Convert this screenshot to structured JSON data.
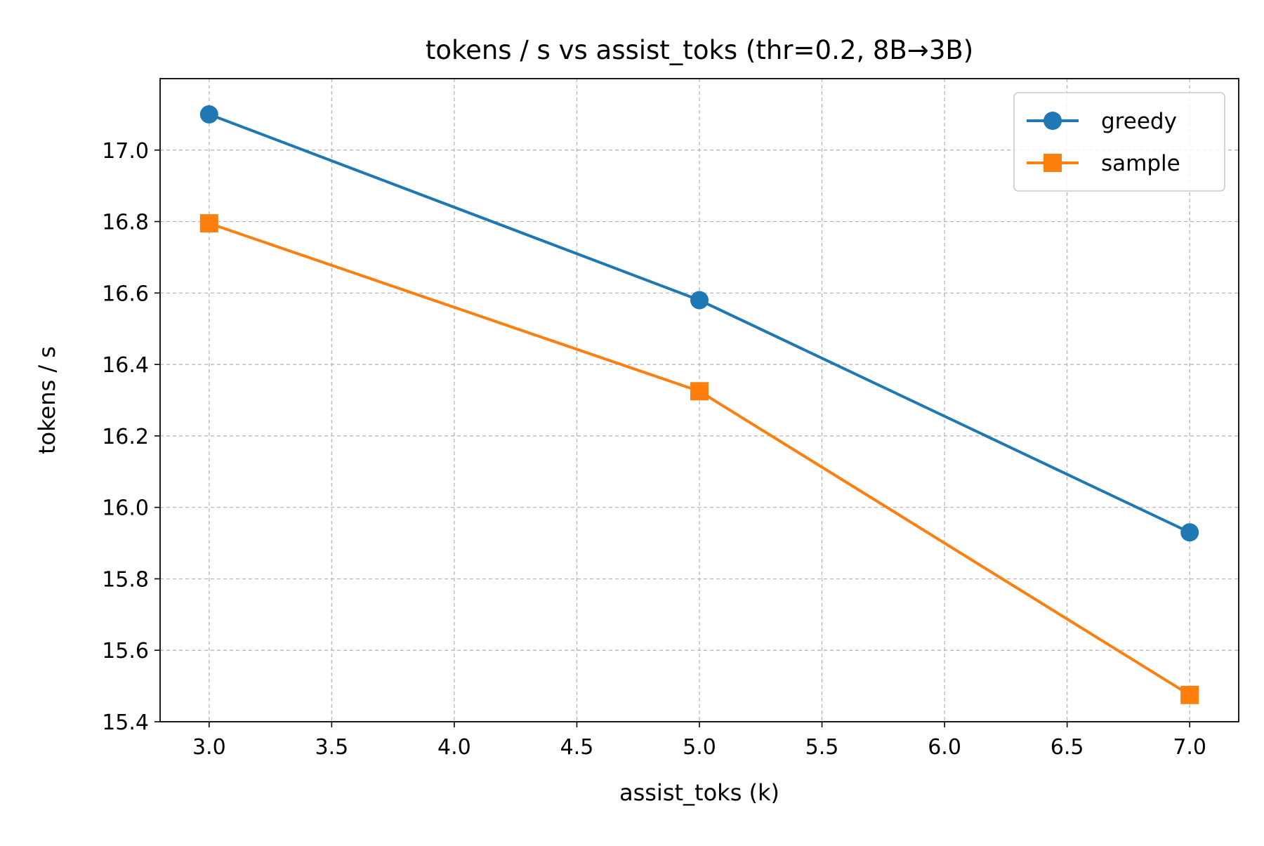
{
  "chart_data": {
    "type": "line",
    "title": "tokens / s vs assist_toks (thr=0.2, 8B→3B)",
    "xlabel": "assist_toks (k)",
    "ylabel": "tokens / s",
    "xlim": [
      2.8,
      7.2
    ],
    "ylim": [
      15.4,
      17.2
    ],
    "xticks": [
      3.0,
      3.5,
      4.0,
      4.5,
      5.0,
      5.5,
      6.0,
      6.5,
      7.0
    ],
    "xtick_labels": [
      "3.0",
      "3.5",
      "4.0",
      "4.5",
      "5.0",
      "5.5",
      "6.0",
      "6.5",
      "7.0"
    ],
    "yticks": [
      15.4,
      15.6,
      15.8,
      16.0,
      16.2,
      16.4,
      16.6,
      16.8,
      17.0
    ],
    "ytick_labels": [
      "15.4",
      "15.6",
      "15.8",
      "16.0",
      "16.2",
      "16.4",
      "16.6",
      "16.8",
      "17.0"
    ],
    "grid": true,
    "legend_position": "top-right",
    "x": [
      3,
      5,
      7
    ],
    "series": [
      {
        "name": "greedy",
        "values": [
          17.1,
          16.58,
          15.93
        ],
        "color": "#1f77b4",
        "marker": "circle"
      },
      {
        "name": "sample",
        "values": [
          16.795,
          16.325,
          15.475
        ],
        "color": "#ff7f0e",
        "marker": "square"
      }
    ]
  }
}
